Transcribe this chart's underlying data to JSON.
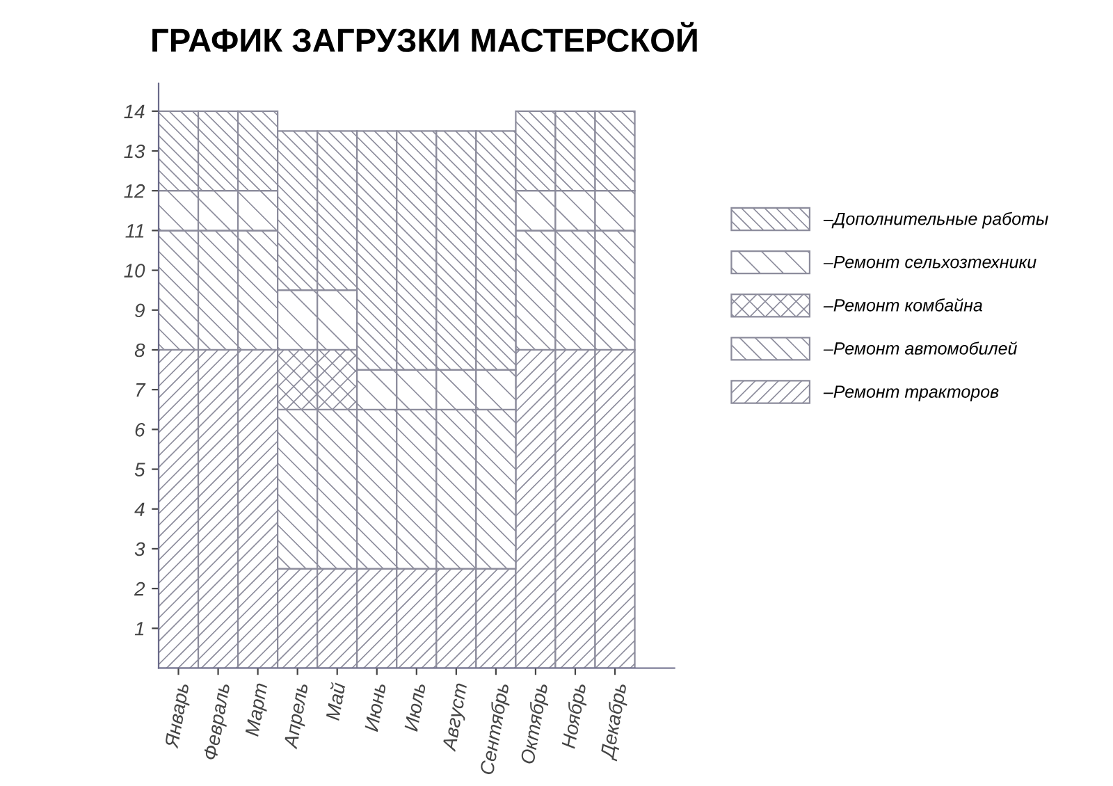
{
  "chart_data": {
    "type": "bar",
    "stacked": true,
    "title": "ГРАФИК ЗАГРУЗКИ МАСТЕРСКОЙ",
    "categories": [
      "Январь",
      "Февраль",
      "Март",
      "Апрель",
      "Май",
      "Июнь",
      "Июль",
      "Август",
      "Сентябрь",
      "Октябрь",
      "Ноябрь",
      "Декабрь"
    ],
    "series": [
      {
        "name": "–Ремонт тракторов",
        "color": "#8c8c9c",
        "values": [
          8,
          8,
          8,
          2.5,
          2.5,
          2.5,
          2.5,
          2.5,
          2.5,
          8,
          8,
          8
        ]
      },
      {
        "name": "–Ремонт автомобилей",
        "color": "#8c8c9c",
        "values": [
          3,
          3,
          3,
          4,
          4,
          4,
          4,
          4,
          4,
          3,
          3,
          3
        ]
      },
      {
        "name": "–Ремонт комбайна",
        "color": "#8c8c9c",
        "values": [
          0,
          0,
          0,
          1.5,
          1.5,
          0,
          0,
          0,
          0,
          0,
          0,
          0
        ]
      },
      {
        "name": "–Ремонт сельхозтехники",
        "color": "#8c8c9c",
        "values": [
          1,
          1,
          1,
          1.5,
          1.5,
          1,
          1,
          1,
          1,
          1,
          1,
          1
        ]
      },
      {
        "name": "–Дополнительные работы",
        "color": "#8c8c9c",
        "values": [
          2,
          2,
          2,
          4,
          4,
          6,
          6,
          6,
          6,
          2,
          2,
          2
        ]
      }
    ],
    "ylim": [
      0,
      14.7
    ],
    "yticks": [
      1,
      2,
      3,
      4,
      5,
      6,
      7,
      8,
      9,
      10,
      11,
      12,
      13,
      14
    ],
    "grid": false,
    "legend": "right"
  }
}
